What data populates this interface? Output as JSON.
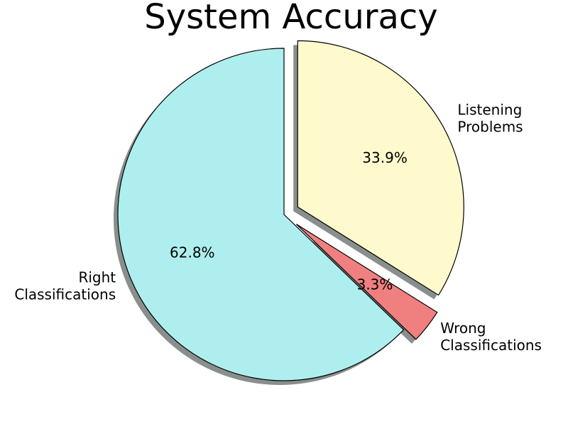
{
  "chart_data": {
    "type": "pie",
    "title": "System Accuracy",
    "slices": [
      {
        "label": "Right\nClassifications",
        "value": 62.8,
        "pct_label": "62.8%",
        "color": "#afeeee",
        "exploded": false
      },
      {
        "label": "Wrong\nClassifications",
        "value": 3.3,
        "pct_label": "3.3%",
        "color": "#f08080",
        "exploded": true
      },
      {
        "label": "Listening\nProblems",
        "value": 33.9,
        "pct_label": "33.9%",
        "color": "#fffacd",
        "exploded": true
      }
    ],
    "start_angle": "90° (top), counter-clockwise",
    "shadow": true,
    "edge_color": "#000000",
    "shadow_color": "#888f8c"
  }
}
